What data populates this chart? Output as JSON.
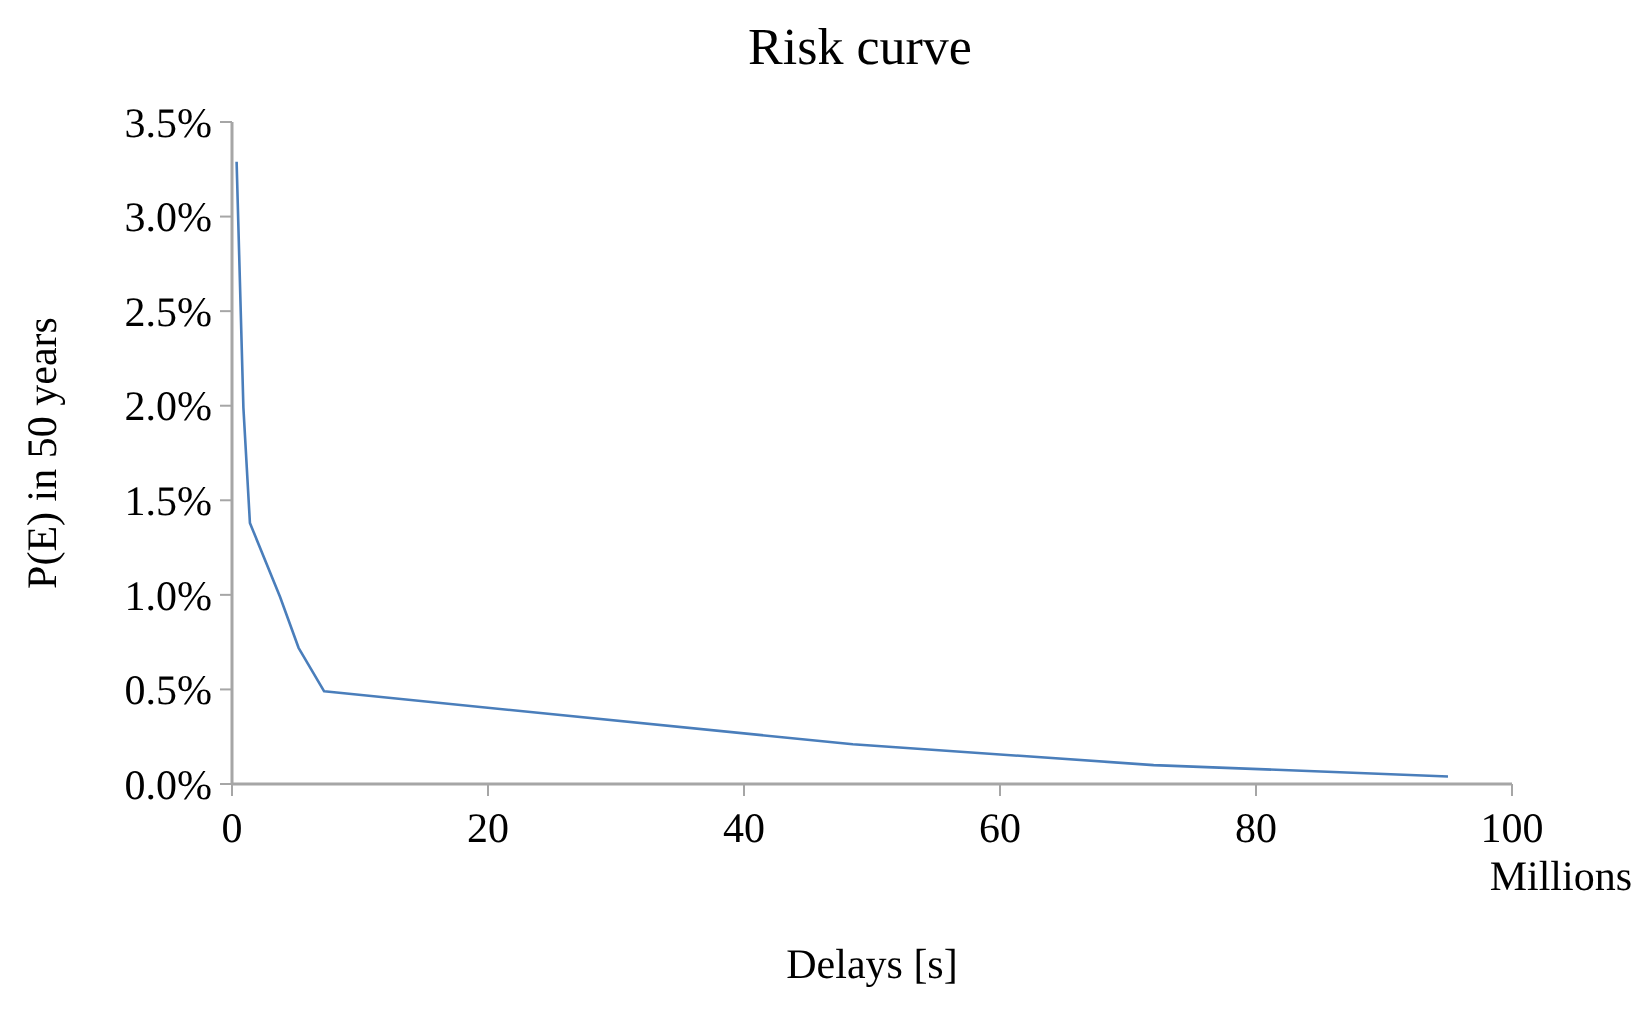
{
  "chart_data": {
    "type": "line",
    "title": "Risk curve",
    "xlabel": "Delays [s]",
    "ylabel": "P(E) in 50 years",
    "annotations": [
      "Millions"
    ],
    "series": [
      {
        "color": "#4a7ebb",
        "x": [
          0.36,
          0.89,
          1.4,
          3.75,
          5.2,
          7.2,
          48.5,
          72,
          95
        ],
        "values": [
          3.29,
          1.99,
          1.38,
          0.99,
          0.72,
          0.49,
          0.21,
          0.1,
          0.04
        ]
      }
    ],
    "xlim": [
      0,
      100
    ],
    "xticks": [
      0,
      20,
      40,
      60,
      80,
      100
    ],
    "ylim": [
      0,
      3.5
    ],
    "yticks": [
      {
        "value": 0,
        "label": "0.0%"
      },
      {
        "value": 0.5,
        "label": "0.5%"
      },
      {
        "value": 1,
        "label": "1.0%"
      },
      {
        "value": 1.5,
        "label": "1.5%"
      },
      {
        "value": 2,
        "label": "2.0%"
      },
      {
        "value": 2.5,
        "label": "2.5%"
      },
      {
        "value": 3,
        "label": "3.0%"
      },
      {
        "value": 3.5,
        "label": "3.5%"
      }
    ],
    "grid": false,
    "marker": "none",
    "line_style": "solid"
  }
}
